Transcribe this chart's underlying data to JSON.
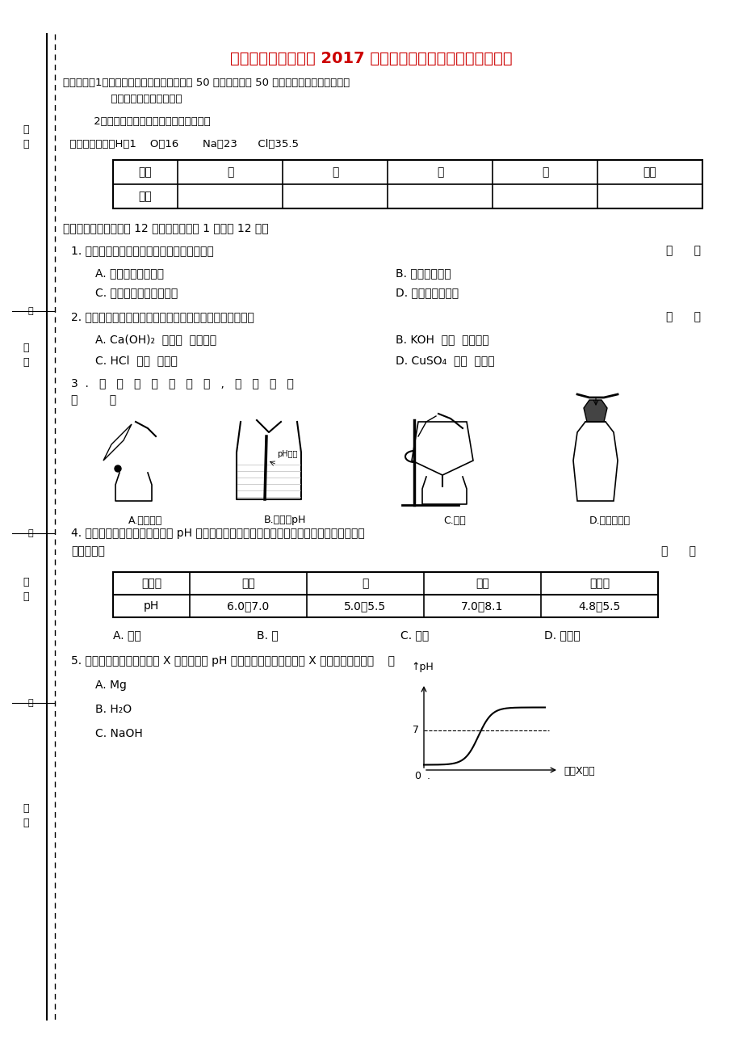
{
  "title": "河南省南阳市新野县 2017 届九年级化学下学期结业考试试题",
  "title_color": "#cc0000",
  "bg_color": "#ffffff",
  "sidebar_labels": [
    "考号",
    "姓名",
    "班级",
    "学校"
  ],
  "notice_lines": [
    "注意事项：1、本试题共四页，四大题，满分 50 分；考试时间 50 分钟，请用蓝、黑色水笔或",
    "              圆珠笔直接答在试卷上。",
    "         2、答卷前将密封线内的项目填写清楚。",
    "  相对原子质量：H：1    O：16       Na：23      Cl：35.5"
  ],
  "score_table_headers": [
    "题号",
    "一",
    "二",
    "三",
    "四",
    "总分"
  ],
  "score_table_row": [
    "分数",
    "",
    "",
    "",
    "",
    ""
  ],
  "section1_title": "一、选择题（本题包括 12 个小题，每小题 1 分，共 12 分）",
  "q1": "1. 下列有关物质的用途，利用了物理性质的是",
  "q1_bracket": "（      ）",
  "q1_options": [
    [
      "A. 用稀硫酸除去铁锈",
      "B. 用氢气作燃料"
    ],
    [
      "C. 用熟石灰改良酸性土壤",
      "D. 用干冰人工降雨"
    ]
  ],
  "q2": "2. 下列各组中的化学式与俗名、学名能表示同一种物质的是",
  "q2_bracket": "（      ）",
  "q2_options": [
    [
      "A. Ca(OH)₂  生石灰  氢氧化钙",
      "B. KOH  烧碱  氢氧化钾"
    ],
    [
      "C. HCl  盐酸  氢氯酸",
      "D. CuSO₄  胆矾  硫酸铜"
    ]
  ],
  "q3_line1": "3  .   下   列   实   验   操   作   中   ,   正   确   的   是",
  "q3_line2": "（         ）",
  "q3_img_labels": [
    "A.倾倒液体",
    "B.测溶液pH",
    "C.过滤",
    "D.塞紧橡皮塞"
  ],
  "q4": "4. 下表是部分农作物生长对土壤 pH 的要求。如果某地区经常降酸雨，则该地区最不适合种植",
  "q4_line2": "的农作物是",
  "q4_bracket": "（      ）",
  "crop_table_headers": [
    "农作物",
    "大豆",
    "茶",
    "玉米",
    "马铃薯"
  ],
  "crop_table_row": [
    "pH",
    "6.0～7.0",
    "5.0～5.5",
    "7.0～8.1",
    "4.8～5.5"
  ],
  "q4_options": [
    "A. 大豆",
    "B. 茶",
    "C. 玉米",
    "D. 马铃薯"
  ],
  "q5": "5. 向稀盐酸中逐渐加入试剂 X 后，溶液的 pH 变化情况如图所示，试剂 X 是下列物质中的（    ）",
  "q5_options": [
    "A. Mg",
    "B. H₂O",
    "C. NaOH"
  ],
  "q5_graph_xlabel": "加入X的量",
  "q5_graph_ylabel": "↑pH",
  "q5_graph_y7": "7"
}
